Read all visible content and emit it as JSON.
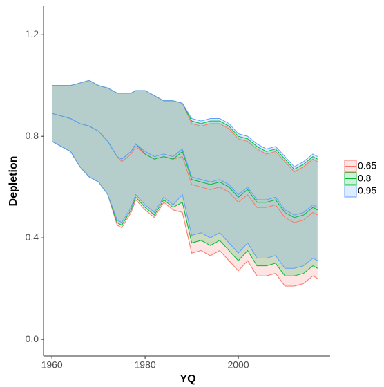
{
  "chart_data": {
    "type": "ribbon",
    "x_label": "YQ",
    "y_label": "Depletion",
    "x": [
      1960,
      1962,
      1964,
      1966,
      1968,
      1970,
      1972,
      1974,
      1975,
      1977,
      1978,
      1980,
      1982,
      1984,
      1986,
      1988,
      1990,
      1992,
      1994,
      1996,
      1998,
      2000,
      2002,
      2004,
      2006,
      2008,
      2010,
      2012,
      2014,
      2016,
      2017
    ],
    "xlim": [
      1958.2,
      2019.7
    ],
    "xticks": [
      1960,
      1980,
      2000
    ],
    "ylim": [
      -0.065,
      1.315
    ],
    "yticks": [
      {
        "value": 0,
        "label": "0.0"
      },
      0.4,
      0.8,
      1.2
    ],
    "series": [
      {
        "name": "0.65",
        "color": "#f8766d",
        "upper": [
          1.0,
          1.0,
          1.0,
          1.01,
          1.02,
          1.0,
          0.99,
          0.97,
          0.97,
          0.97,
          0.98,
          0.98,
          0.96,
          0.94,
          0.94,
          0.93,
          0.85,
          0.84,
          0.85,
          0.85,
          0.83,
          0.79,
          0.78,
          0.75,
          0.73,
          0.74,
          0.7,
          0.66,
          0.68,
          0.71,
          0.7
        ],
        "median": [
          0.89,
          0.88,
          0.87,
          0.85,
          0.84,
          0.82,
          0.78,
          0.72,
          0.7,
          0.73,
          0.76,
          0.73,
          0.71,
          0.72,
          0.71,
          0.72,
          0.61,
          0.6,
          0.59,
          0.6,
          0.58,
          0.54,
          0.57,
          0.52,
          0.52,
          0.53,
          0.48,
          0.46,
          0.47,
          0.5,
          0.49
        ],
        "lower": [
          0.78,
          0.76,
          0.74,
          0.68,
          0.64,
          0.62,
          0.57,
          0.45,
          0.44,
          0.5,
          0.55,
          0.51,
          0.48,
          0.54,
          0.51,
          0.5,
          0.34,
          0.35,
          0.33,
          0.35,
          0.31,
          0.27,
          0.31,
          0.25,
          0.25,
          0.26,
          0.21,
          0.21,
          0.22,
          0.25,
          0.24
        ]
      },
      {
        "name": "0.8",
        "color": "#00ba38",
        "upper": [
          1.0,
          1.0,
          1.0,
          1.01,
          1.02,
          1.0,
          0.99,
          0.97,
          0.97,
          0.97,
          0.98,
          0.98,
          0.96,
          0.94,
          0.94,
          0.93,
          0.86,
          0.85,
          0.86,
          0.86,
          0.84,
          0.8,
          0.79,
          0.76,
          0.74,
          0.75,
          0.71,
          0.67,
          0.69,
          0.72,
          0.71
        ],
        "median": [
          0.89,
          0.88,
          0.87,
          0.85,
          0.84,
          0.82,
          0.78,
          0.72,
          0.71,
          0.74,
          0.77,
          0.73,
          0.71,
          0.72,
          0.71,
          0.74,
          0.63,
          0.62,
          0.61,
          0.62,
          0.6,
          0.56,
          0.59,
          0.54,
          0.54,
          0.55,
          0.5,
          0.48,
          0.49,
          0.52,
          0.51
        ],
        "lower": [
          0.78,
          0.76,
          0.74,
          0.68,
          0.64,
          0.62,
          0.57,
          0.46,
          0.45,
          0.51,
          0.56,
          0.52,
          0.49,
          0.55,
          0.52,
          0.54,
          0.38,
          0.39,
          0.37,
          0.39,
          0.35,
          0.31,
          0.35,
          0.29,
          0.29,
          0.3,
          0.25,
          0.25,
          0.26,
          0.29,
          0.28
        ]
      },
      {
        "name": "0.95",
        "color": "#619cff",
        "upper": [
          1.0,
          1.0,
          1.0,
          1.01,
          1.02,
          1.0,
          0.99,
          0.97,
          0.97,
          0.97,
          0.98,
          0.98,
          0.96,
          0.94,
          0.94,
          0.93,
          0.87,
          0.86,
          0.87,
          0.87,
          0.85,
          0.81,
          0.8,
          0.77,
          0.75,
          0.76,
          0.72,
          0.68,
          0.7,
          0.73,
          0.72
        ],
        "median": [
          0.89,
          0.88,
          0.87,
          0.85,
          0.84,
          0.82,
          0.78,
          0.72,
          0.71,
          0.74,
          0.77,
          0.74,
          0.72,
          0.73,
          0.72,
          0.75,
          0.64,
          0.63,
          0.62,
          0.63,
          0.61,
          0.57,
          0.6,
          0.55,
          0.55,
          0.56,
          0.51,
          0.49,
          0.5,
          0.53,
          0.52
        ],
        "lower": [
          0.78,
          0.76,
          0.74,
          0.68,
          0.64,
          0.62,
          0.57,
          0.47,
          0.46,
          0.52,
          0.57,
          0.53,
          0.5,
          0.56,
          0.53,
          0.57,
          0.41,
          0.42,
          0.4,
          0.42,
          0.38,
          0.34,
          0.38,
          0.32,
          0.32,
          0.33,
          0.28,
          0.28,
          0.29,
          0.32,
          0.31
        ]
      }
    ]
  }
}
